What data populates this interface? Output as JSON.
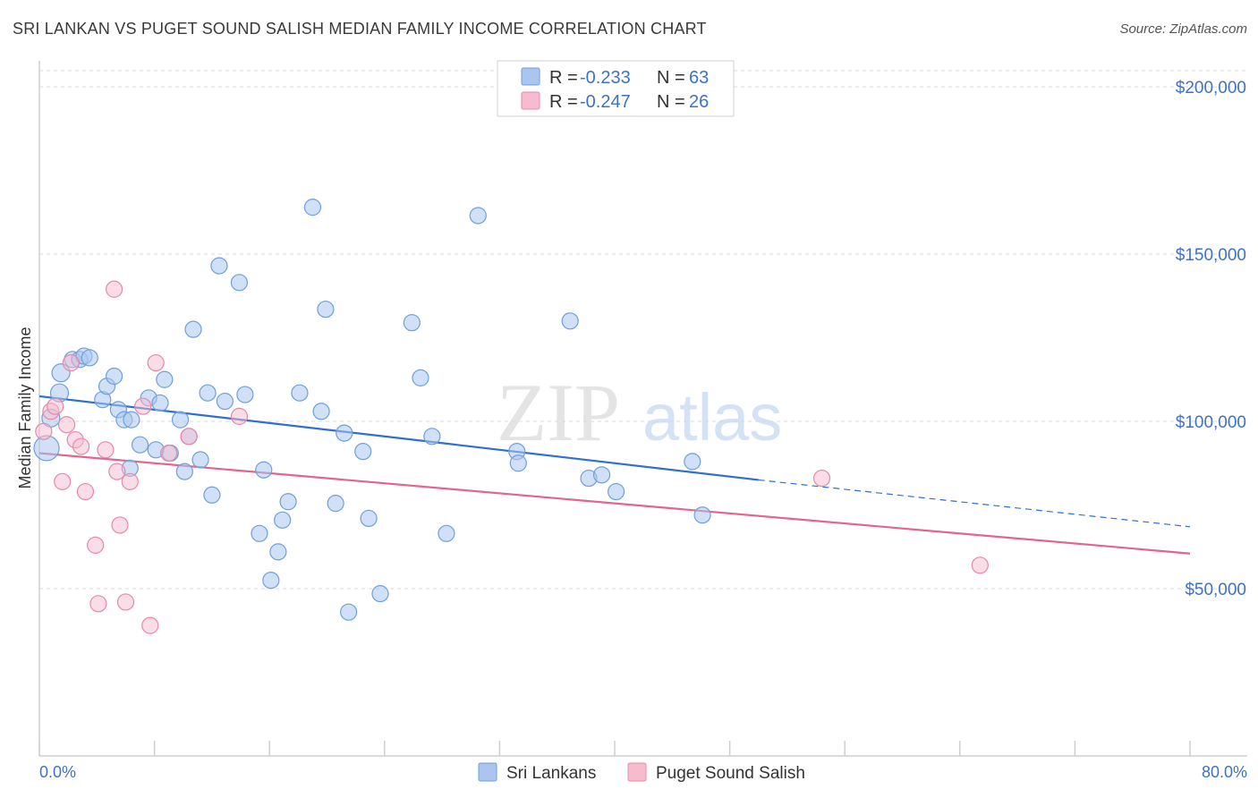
{
  "title": "SRI LANKAN VS PUGET SOUND SALISH MEDIAN FAMILY INCOME CORRELATION CHART",
  "source": "Source: ZipAtlas.com",
  "watermark": {
    "zip": "ZIP",
    "atlas": "atlas"
  },
  "legend": [
    {
      "r_label": "R =",
      "r_value": "-0.233",
      "n_label": "N =",
      "n_value": "63"
    },
    {
      "r_label": "R =",
      "r_value": "-0.247",
      "n_label": "N =",
      "n_value": "26"
    }
  ],
  "bottom_legend": [
    "Sri Lankans",
    "Puget Sound Salish"
  ],
  "colors": {
    "blue_fill": "#aac6ee",
    "blue_stroke": "#6f9fdc",
    "blue_line": "#2f6fcf",
    "pink_fill": "#f6bccd",
    "pink_stroke": "#e888a8",
    "pink_line": "#e0668f",
    "grid": "#d8d8d8",
    "axis_text": "#3d72c8"
  },
  "chart_data": {
    "type": "scatter",
    "title": "SRI LANKAN VS PUGET SOUND SALISH MEDIAN FAMILY INCOME CORRELATION CHART",
    "xlabel": "",
    "ylabel": "Median Family Income",
    "xlim": [
      0,
      80
    ],
    "ylim": [
      0,
      210000
    ],
    "x_tick_labels": [
      "0.0%",
      "80.0%"
    ],
    "y_ticks": [
      50000,
      100000,
      150000,
      200000
    ],
    "y_tick_labels": [
      "$50,000",
      "$100,000",
      "$150,000",
      "$200,000"
    ],
    "grid": true,
    "legend_position": "top-center",
    "series": [
      {
        "name": "Sri Lankans",
        "r": -0.233,
        "n": 63,
        "trend": {
          "x0": 0,
          "y0": 107500,
          "x1": 50,
          "y1": 82500,
          "dashed_to_x": 80,
          "dashed_to_y": 68500
        },
        "points": [
          [
            0.5,
            92000,
            14
          ],
          [
            0.8,
            101000,
            10
          ],
          [
            1.4,
            108500,
            10
          ],
          [
            1.5,
            114500,
            10
          ],
          [
            2.3,
            118500,
            9
          ],
          [
            2.8,
            118500,
            9
          ],
          [
            3.1,
            119500,
            9
          ],
          [
            3.5,
            119000,
            9
          ],
          [
            4.4,
            106500,
            9
          ],
          [
            4.7,
            110500,
            9
          ],
          [
            5.2,
            113500,
            9
          ],
          [
            5.5,
            103500,
            9
          ],
          [
            5.9,
            100500,
            9
          ],
          [
            6.4,
            100500,
            9
          ],
          [
            6.3,
            86000,
            9
          ],
          [
            7.0,
            93000,
            9
          ],
          [
            7.6,
            107000,
            9
          ],
          [
            8.1,
            91500,
            9
          ],
          [
            8.4,
            105500,
            9
          ],
          [
            8.7,
            112500,
            9
          ],
          [
            9.1,
            90500,
            9
          ],
          [
            9.8,
            100500,
            9
          ],
          [
            10.1,
            85000,
            9
          ],
          [
            10.4,
            95500,
            9
          ],
          [
            10.7,
            127500,
            9
          ],
          [
            11.2,
            88500,
            9
          ],
          [
            11.7,
            108500,
            9
          ],
          [
            12.0,
            78000,
            9
          ],
          [
            12.5,
            146500,
            9
          ],
          [
            12.9,
            106000,
            9
          ],
          [
            13.9,
            141500,
            9
          ],
          [
            14.3,
            108000,
            9
          ],
          [
            15.3,
            66500,
            9
          ],
          [
            15.6,
            85500,
            9
          ],
          [
            16.1,
            52500,
            9
          ],
          [
            16.6,
            61000,
            9
          ],
          [
            16.9,
            70500,
            9
          ],
          [
            17.3,
            76000,
            9
          ],
          [
            18.1,
            108500,
            9
          ],
          [
            19.0,
            164000,
            9
          ],
          [
            19.6,
            103000,
            9
          ],
          [
            19.9,
            133500,
            9
          ],
          [
            20.6,
            75500,
            9
          ],
          [
            21.2,
            96500,
            9
          ],
          [
            21.5,
            43000,
            9
          ],
          [
            22.5,
            91000,
            9
          ],
          [
            22.9,
            71000,
            9
          ],
          [
            23.7,
            48500,
            9
          ],
          [
            25.9,
            129500,
            9
          ],
          [
            26.5,
            113000,
            9
          ],
          [
            27.3,
            95500,
            9
          ],
          [
            28.3,
            66500,
            9
          ],
          [
            30.5,
            161500,
            9
          ],
          [
            33.2,
            91000,
            9
          ],
          [
            33.3,
            87500,
            9
          ],
          [
            36.9,
            130000,
            9
          ],
          [
            38.2,
            83000,
            9
          ],
          [
            39.1,
            84000,
            9
          ],
          [
            40.1,
            79000,
            9
          ],
          [
            45.4,
            88000,
            9
          ],
          [
            46.1,
            72000,
            9
          ]
        ]
      },
      {
        "name": "Puget Sound Salish",
        "r": -0.247,
        "n": 26,
        "trend": {
          "x0": 0,
          "y0": 90500,
          "x1": 80,
          "y1": 60500
        },
        "points": [
          [
            0.3,
            97000,
            9
          ],
          [
            0.8,
            103000,
            9
          ],
          [
            1.1,
            104500,
            9
          ],
          [
            1.6,
            82000,
            9
          ],
          [
            1.9,
            99000,
            9
          ],
          [
            2.2,
            117500,
            9
          ],
          [
            2.5,
            94500,
            9
          ],
          [
            2.9,
            92500,
            9
          ],
          [
            3.2,
            79000,
            9
          ],
          [
            3.9,
            63000,
            9
          ],
          [
            4.1,
            45500,
            9
          ],
          [
            4.6,
            91500,
            9
          ],
          [
            5.2,
            139500,
            9
          ],
          [
            5.4,
            85000,
            9
          ],
          [
            5.6,
            69000,
            9
          ],
          [
            6.0,
            46000,
            9
          ],
          [
            6.3,
            82000,
            9
          ],
          [
            7.2,
            104500,
            9
          ],
          [
            7.7,
            39000,
            9
          ],
          [
            8.1,
            117500,
            9
          ],
          [
            9.0,
            90500,
            9
          ],
          [
            10.4,
            95500,
            9
          ],
          [
            13.9,
            101500,
            9
          ],
          [
            54.4,
            83000,
            9
          ],
          [
            65.4,
            57000,
            9
          ]
        ]
      }
    ]
  }
}
